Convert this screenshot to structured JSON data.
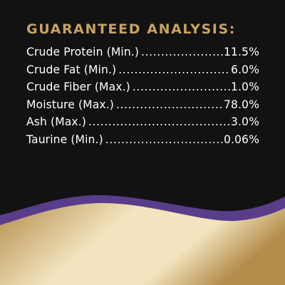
{
  "panel": {
    "heading": "GUARANTEED ANALYSIS:",
    "rows": [
      {
        "label": "Crude Protein (Min.)",
        "value": "11.5%"
      },
      {
        "label": "Crude Fat (Min.)",
        "value": "6.0%"
      },
      {
        "label": "Crude Fiber (Max.)",
        "value": "1.0%"
      },
      {
        "label": "Moisture (Max.)",
        "value": "78.0%"
      },
      {
        "label": "Ash (Max.)",
        "value": "3.0%"
      },
      {
        "label": "Taurine (Min.)",
        "value": "0.06%"
      }
    ]
  },
  "colors": {
    "background": "#121213",
    "heading_gold": "#c9a262",
    "text": "#ffffff",
    "purple_band": "#5a3d8a",
    "gold_light": "#f3e4bf",
    "gold_dark": "#b48d4b"
  }
}
